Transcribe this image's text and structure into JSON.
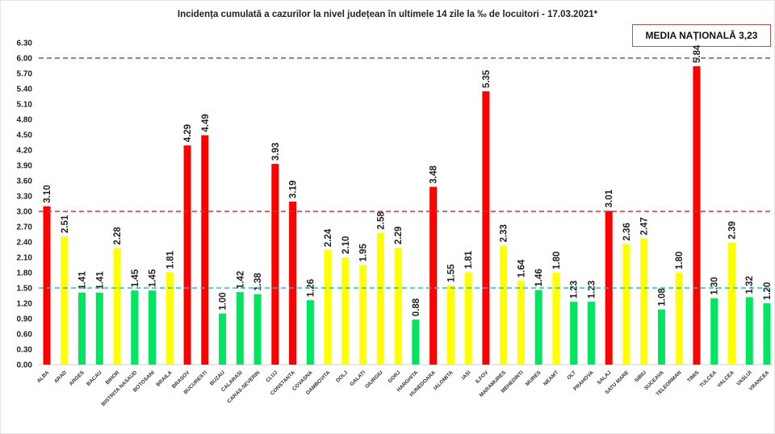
{
  "chart_data": {
    "type": "bar",
    "title": "Incidența cumulată a cazurilor la nivel județean în ultimele 14 zile   la ‰ de locuitori  - 17.03.2021*",
    "annotation": "MEDIA NAȚIONALĂ 3,23",
    "ylim": [
      0,
      6.3
    ],
    "yticks": [
      "0.00",
      "0.30",
      "0.60",
      "0.90",
      "1.20",
      "1.50",
      "1.80",
      "2.10",
      "2.40",
      "2.70",
      "3.00",
      "3.30",
      "3.60",
      "3.90",
      "4.20",
      "4.50",
      "4.80",
      "5.10",
      "5.40",
      "5.70",
      "6.00",
      "6.30"
    ],
    "grid": false,
    "reference_lines": [
      {
        "value": 6.0,
        "color": "#7f4fa0"
      },
      {
        "value": 3.0,
        "color": "#e0302a"
      },
      {
        "value": 1.5,
        "color": "#2fb5d8"
      }
    ],
    "colors": {
      "red": "#ff0000",
      "yellow": "#ffff00",
      "green": "#00e660"
    },
    "categories": [
      "ALBA",
      "ARAD",
      "ARGES",
      "BACAU",
      "BIHOR",
      "BISTRITA NASAUD",
      "BOTOSANI",
      "BRAILA",
      "BRASOV",
      "BUCURESTI",
      "BUZAU",
      "CALARASI",
      "CARAS-SEVERIN",
      "CLUJ",
      "CONSTANTA",
      "COVASNA",
      "DAMBOVITA",
      "DOLJ",
      "GALATI",
      "GIURGIU",
      "GORJ",
      "HARGHITA",
      "HUNEDOARA",
      "IALOMITA",
      "IASI",
      "ILFOV",
      "MARAMURES",
      "MEHEDINTI",
      "MURES",
      "NEAMT",
      "OLT",
      "PRAHOVA",
      "SALAJ",
      "SATU MARE",
      "SIBIU",
      "SUCEAVA",
      "TELEORMAN",
      "TIMIS",
      "TULCEA",
      "VALCEA",
      "VASLUI",
      "VRANCEA"
    ],
    "values": [
      3.1,
      2.51,
      1.41,
      1.41,
      2.28,
      1.45,
      1.45,
      1.81,
      4.29,
      4.49,
      1.0,
      1.42,
      1.38,
      3.93,
      3.19,
      1.26,
      2.24,
      2.1,
      1.95,
      2.58,
      2.29,
      0.88,
      3.48,
      1.55,
      1.81,
      5.35,
      2.33,
      1.64,
      1.46,
      1.8,
      1.23,
      1.23,
      3.01,
      2.36,
      2.47,
      1.08,
      1.8,
      5.84,
      1.3,
      2.39,
      1.32,
      1.2
    ],
    "value_labels": [
      "3.10",
      "2.51",
      "1.41",
      "1.41",
      "2.28",
      "1.45",
      "1.45",
      "1.81",
      "4.29",
      "4.49",
      "1.00",
      "1.42",
      "1.38",
      "3.93",
      "3.19",
      "1.26",
      "2.24",
      "2.10",
      "1.95",
      "2.58",
      "2.29",
      "0.88",
      "3.48",
      "1.55",
      "1.81",
      "5.35",
      "2.33",
      "1.64",
      "1.46",
      "1.80",
      "1.23",
      "1.23",
      "3.01",
      "2.36",
      "2.47",
      "1.08",
      "1.80",
      "5.84",
      "1.30",
      "2.39",
      "1.32",
      "1.20"
    ]
  }
}
